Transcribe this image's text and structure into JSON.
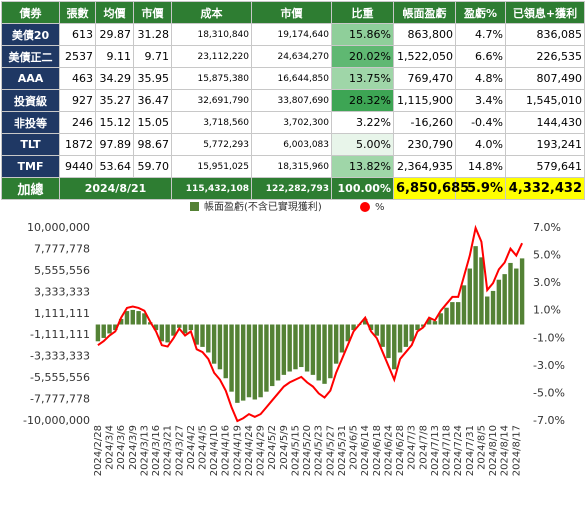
{
  "table": {
    "headers": [
      "債券",
      "張數",
      "均價",
      "市價",
      "成本",
      "市價",
      "比重",
      "帳面盈虧",
      "盈虧%",
      "已領息+獲利"
    ],
    "rows": [
      [
        "美債20",
        "613",
        "29.87",
        "31.28",
        "18,310,840",
        "19,174,640",
        "15.86%",
        "863,800",
        "4.7%",
        "836,085"
      ],
      [
        "美債正二",
        "2537",
        "9.11",
        "9.71",
        "23,112,220",
        "24,634,270",
        "20.02%",
        "1,522,050",
        "6.6%",
        "226,535"
      ],
      [
        "AAA",
        "463",
        "34.29",
        "35.95",
        "15,875,380",
        "16,644,850",
        "13.75%",
        "769,470",
        "4.8%",
        "807,490"
      ],
      [
        "投資級",
        "927",
        "35.27",
        "36.47",
        "32,691,790",
        "33,807,690",
        "28.32%",
        "1,115,900",
        "3.4%",
        "1,545,010"
      ],
      [
        "非投等",
        "246",
        "15.12",
        "15.05",
        "3,718,560",
        "3,702,300",
        "3.22%",
        "-16,260",
        "-0.4%",
        "144,430"
      ],
      [
        "TLT",
        "1872",
        "97.89",
        "98.67",
        "5,772,293",
        "6,003,083",
        "5.00%",
        "230,790",
        "4.0%",
        "193,241"
      ],
      [
        "TMF",
        "9440",
        "53.64",
        "59.70",
        "15,951,025",
        "18,315,960",
        "13.82%",
        "2,364,935",
        "14.8%",
        "579,641"
      ]
    ],
    "total": [
      "加總",
      "2024/8/21",
      "115,432,108",
      "122,282,793",
      "100.00%",
      "6,850,685",
      "5.9%",
      "4,332,432"
    ]
  },
  "chart_data": {
    "type": "bar_line",
    "categories": [
      "2024/2/28",
      null,
      "2024/3/4",
      null,
      "2024/3/6",
      null,
      "2024/3/9",
      null,
      "2024/3/13",
      null,
      "2024/3/16",
      null,
      "2024/3/21",
      null,
      "2024/3/27",
      null,
      "2024/4/2",
      null,
      "2024/4/5",
      null,
      "2024/4/10",
      null,
      "2024/4/16",
      null,
      "2024/4/19",
      null,
      "2024/4/24",
      null,
      "2024/4/29",
      null,
      "2024/5/2",
      null,
      "2024/5/9",
      null,
      "2024/5/15",
      null,
      "2024/5/20",
      null,
      "2024/5/23",
      null,
      "2024/5/27",
      null,
      "2024/5/31",
      null,
      "2024/6/5",
      null,
      "2024/6/14",
      null,
      "2024/6/18",
      null,
      "2024/6/24",
      null,
      "2024/6/28",
      null,
      "2024/7/3",
      null,
      "2024/7/8",
      null,
      "2024/7/13",
      null,
      "2024/7/18",
      null,
      "2024/7/24",
      null,
      "2024/7/31",
      null,
      "2024/8/5",
      null,
      "2024/8/10",
      null,
      "2024/8/14",
      null,
      "2024/8/17",
      null
    ],
    "series": [
      {
        "name": "帳面盈虧(不含已實現獲利)",
        "color": "#548235",
        "values": [
          -1740000,
          -1392000,
          -928000,
          -580000,
          580000,
          1392000,
          1508000,
          1392000,
          1160000,
          232000,
          -580000,
          -1740000,
          -1856000,
          -1160000,
          -348000,
          -928000,
          -580000,
          -2088000,
          -2320000,
          -2900000,
          -4060000,
          -4640000,
          -5568000,
          -6960000,
          -8120000,
          -7888000,
          -7540000,
          -7772000,
          -7540000,
          -6960000,
          -6380000,
          -5800000,
          -5220000,
          -4872000,
          -4640000,
          -4408000,
          -4872000,
          -5220000,
          -5800000,
          -6148000,
          -5568000,
          -4060000,
          -2900000,
          -1740000,
          -580000,
          0,
          580000,
          -580000,
          -1160000,
          -2320000,
          -3480000,
          -4640000,
          -2900000,
          -2320000,
          -1740000,
          -580000,
          -232000,
          580000,
          348000,
          1160000,
          1740000,
          2320000,
          2320000,
          4060000,
          5800000,
          8120000,
          6960000,
          2900000,
          3480000,
          4640000,
          5220000,
          6380000,
          5800000,
          6850685
        ]
      },
      {
        "name": "%",
        "color": "#ff0000",
        "axis": "y2",
        "values": [
          -1.5,
          -1.2,
          -0.8,
          -0.5,
          0.5,
          1.2,
          1.3,
          1.2,
          1.0,
          0.2,
          -0.5,
          -1.5,
          -1.6,
          -1.0,
          -0.3,
          -0.8,
          -0.5,
          -1.8,
          -2.0,
          -2.5,
          -3.5,
          -4.0,
          -4.8,
          -6.0,
          -7.0,
          -6.8,
          -6.5,
          -6.7,
          -6.5,
          -6.0,
          -5.5,
          -5.0,
          -4.5,
          -4.2,
          -4.0,
          -3.8,
          -4.2,
          -4.5,
          -5.0,
          -5.3,
          -4.8,
          -3.5,
          -2.5,
          -1.5,
          -0.5,
          0.0,
          0.5,
          -0.5,
          -1.0,
          -2.0,
          -3.0,
          -4.0,
          -2.5,
          -2.0,
          -1.5,
          -0.5,
          -0.2,
          0.5,
          0.3,
          1.0,
          1.5,
          2.0,
          2.0,
          3.5,
          5.0,
          7.0,
          6.0,
          2.5,
          3.0,
          4.0,
          4.5,
          5.5,
          5.0,
          5.9
        ]
      }
    ],
    "ylim": [
      -10000000,
      10000000
    ],
    "yticks": [
      {
        "value": -10000000,
        "label": "-10,000,000"
      },
      {
        "value": -7777778,
        "label": "-7,777,778"
      },
      {
        "value": -5555556,
        "label": "-5,555,556"
      },
      {
        "value": -3333333,
        "label": "-3,333,333"
      },
      {
        "value": -1111111,
        "label": "-1,111,111"
      },
      {
        "value": 1111111,
        "label": "1,111,111"
      },
      {
        "value": 3333333,
        "label": "3,333,333"
      },
      {
        "value": 5555556,
        "label": "5,555,556"
      },
      {
        "value": 7777778,
        "label": "7,777,778"
      },
      {
        "value": 10000000,
        "label": "10,000,000"
      }
    ],
    "y2lim": [
      -7,
      7
    ],
    "y2ticks": [
      {
        "value": -7,
        "label": "-7.0%"
      },
      {
        "value": -5,
        "label": "-5.0%"
      },
      {
        "value": -3,
        "label": "-3.0%"
      },
      {
        "value": -1,
        "label": "-1.0%"
      },
      {
        "value": 1,
        "label": "1.0%"
      },
      {
        "value": 3,
        "label": "3.0%"
      },
      {
        "value": 5,
        "label": "5.0%"
      },
      {
        "value": 7,
        "label": "7.0%"
      }
    ],
    "grid": false,
    "legend": "top"
  }
}
